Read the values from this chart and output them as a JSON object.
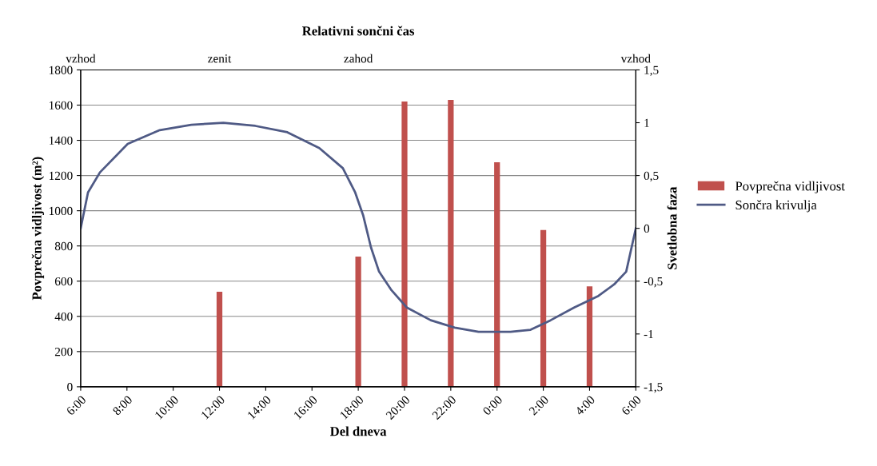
{
  "chart_data": {
    "type": "bar",
    "xlabel": "Del dneva",
    "ylabel": "Povprečna vidljivost (m²)",
    "y2label": "Svetlobna faza",
    "x2label": "Relativni sončni čas",
    "xlim": [
      "2000-01-01T06:00",
      "2000-01-02T06:00"
    ],
    "xticks": [
      {
        "value": "2000-01-01T06:00",
        "label": "6:00"
      },
      {
        "value": "2000-01-01T08:00",
        "label": "8:00"
      },
      {
        "value": "2000-01-01T10:00",
        "label": "10:00"
      },
      {
        "value": "2000-01-01T12:00",
        "label": "12:00"
      },
      {
        "value": "2000-01-01T14:00",
        "label": "14:00"
      },
      {
        "value": "2000-01-01T16:00",
        "label": "16:00"
      },
      {
        "value": "2000-01-01T18:00",
        "label": "18:00"
      },
      {
        "value": "2000-01-01T20:00",
        "label": "20:00"
      },
      {
        "value": "2000-01-01T22:00",
        "label": "22:00"
      },
      {
        "value": "2000-01-02T00:00",
        "label": "0:00"
      },
      {
        "value": "2000-01-02T02:00",
        "label": "2:00"
      },
      {
        "value": "2000-01-02T04:00",
        "label": "4:00"
      },
      {
        "value": "2000-01-02T06:00",
        "label": "6:00"
      }
    ],
    "annotations": [
      "vzhod",
      "zenit",
      "zahod",
      "vzhod"
    ],
    "ylim": [
      0,
      1800
    ],
    "yticks": [
      0,
      200,
      400,
      600,
      800,
      1000,
      1200,
      1400,
      1600,
      1800
    ],
    "y2lim": [
      -1.5,
      1.5
    ],
    "y2ticks": [
      {
        "value": 1.5,
        "label": "1,5"
      },
      {
        "value": 1,
        "label": "1"
      },
      {
        "value": 0.5,
        "label": "0,5"
      },
      {
        "value": 0,
        "label": "0"
      },
      {
        "value": -0.5,
        "label": "-0,5"
      },
      {
        "value": -1,
        "label": "-1"
      },
      {
        "value": -1.5,
        "label": "-1,5"
      }
    ],
    "grid": "y",
    "legend": "right",
    "series": [
      {
        "name": "Povprečna vidljivost",
        "color": "#c0504d",
        "x": [
          "2000-01-01T12:00",
          "2000-01-01T18:00",
          "2000-01-01T20:00",
          "2000-01-01T22:00",
          "2000-01-02T00:00",
          "2000-01-02T02:00",
          "2000-01-02T04:00"
        ],
        "values": [
          540,
          740,
          1620,
          1630,
          1275,
          890,
          570
        ]
      },
      {
        "name": "Sončra krivulja",
        "type": "line",
        "axis": "y2",
        "color": "#4f5a85",
        "x": [
          "2000-01-01T06:00",
          "2000-01-01T06:19",
          "2000-01-01T06:50",
          "2000-01-01T08:02",
          "2000-01-01T09:25",
          "2000-01-01T10:47",
          "2000-01-01T12:10",
          "2000-01-01T13:33",
          "2000-01-01T14:56",
          "2000-01-01T16:19",
          "2000-01-01T17:20",
          "2000-01-01T17:52",
          "2000-01-01T18:13",
          "2000-01-01T18:33",
          "2000-01-01T18:54",
          "2000-01-01T19:25",
          "2000-01-01T20:06",
          "2000-01-01T21:08",
          "2000-01-01T22:10",
          "2000-01-01T23:12",
          "2000-01-02T00:35",
          "2000-01-02T01:27",
          "2000-01-02T02:19",
          "2000-01-02T03:20",
          "2000-01-02T04:23",
          "2000-01-02T05:04",
          "2000-01-02T05:35",
          "2000-01-02T06:00"
        ],
        "values": [
          0,
          0.34,
          0.53,
          0.8,
          0.93,
          0.98,
          1.0,
          0.97,
          0.91,
          0.76,
          0.57,
          0.34,
          0.12,
          -0.18,
          -0.41,
          -0.58,
          -0.75,
          -0.87,
          -0.94,
          -0.98,
          -0.98,
          -0.96,
          -0.87,
          -0.75,
          -0.64,
          -0.53,
          -0.41,
          0
        ]
      }
    ]
  }
}
